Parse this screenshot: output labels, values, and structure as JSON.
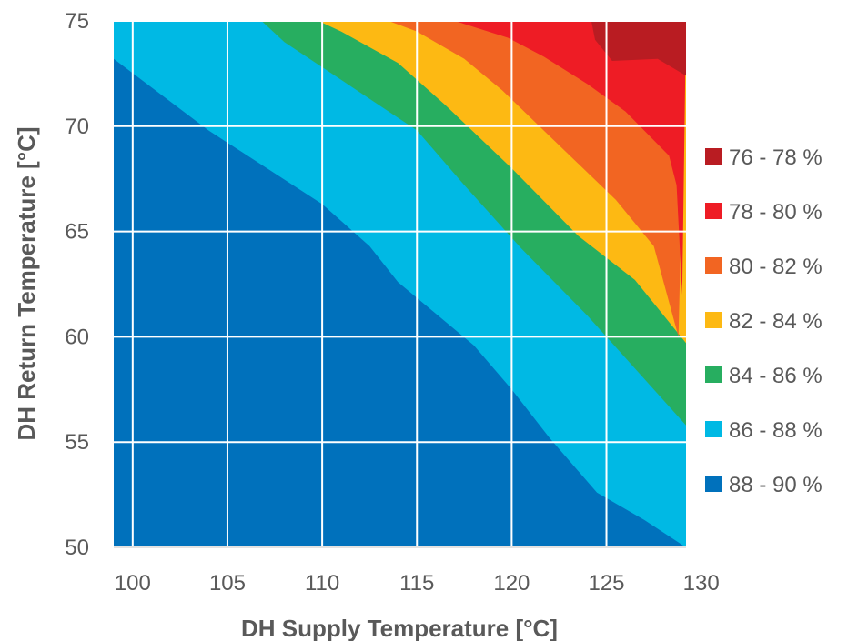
{
  "chart_data": {
    "type": "contour",
    "xlabel": "DH Supply Temperature [°C]",
    "ylabel": "DH Return Temperature [°C]",
    "xlim": [
      99,
      129.2
    ],
    "ylim": [
      50,
      75
    ],
    "xticks": [
      100,
      105,
      110,
      115,
      120,
      125,
      130
    ],
    "yticks": [
      50,
      55,
      60,
      65,
      70,
      75
    ],
    "grid": true,
    "legend_position": "right",
    "legend": [
      {
        "label": "76 - 78 %",
        "color": "#b91c22"
      },
      {
        "label": "78 - 80 %",
        "color": "#ee1c25"
      },
      {
        "label": "80 - 82 %",
        "color": "#f26522"
      },
      {
        "label": "82 - 84 %",
        "color": "#fdb913"
      },
      {
        "label": "84 - 86 %",
        "color": "#27ae60"
      },
      {
        "label": "86 - 88 %",
        "color": "#00b9e4"
      },
      {
        "label": "88 - 90 %",
        "color": "#0071bc"
      }
    ],
    "regions": [
      {
        "band": "86 - 88 %",
        "color": "#00b9e4",
        "boundary": [
          [
            99,
            75
          ],
          [
            129.2,
            75
          ],
          [
            129.2,
            50
          ],
          [
            99,
            50
          ]
        ]
      },
      {
        "band": "88 - 90 %",
        "color": "#0071bc",
        "boundary": [
          [
            99,
            73.2
          ],
          [
            104,
            69.8
          ],
          [
            110,
            66.3
          ],
          [
            112.5,
            64.3
          ],
          [
            114,
            62.6
          ],
          [
            118,
            59.6
          ],
          [
            120,
            57.5
          ],
          [
            122,
            55.2
          ],
          [
            124.5,
            52.6
          ],
          [
            127,
            51.3
          ],
          [
            129.2,
            50
          ],
          [
            99,
            50
          ]
        ]
      },
      {
        "band": "84 - 86 %",
        "color": "#27ae60",
        "boundary": [
          [
            106.8,
            75
          ],
          [
            129.2,
            75
          ],
          [
            129.2,
            55.8
          ],
          [
            124,
            61
          ],
          [
            120.5,
            64.2
          ],
          [
            117.5,
            67.2
          ],
          [
            115,
            69.8
          ],
          [
            111,
            72.2
          ],
          [
            108,
            74
          ]
        ]
      },
      {
        "band": "82 - 84 %",
        "color": "#fdb913",
        "boundary": [
          [
            109.8,
            75
          ],
          [
            129.2,
            75
          ],
          [
            129.2,
            59.7
          ],
          [
            126.5,
            62.7
          ],
          [
            123.5,
            64.8
          ],
          [
            120,
            68
          ],
          [
            116.5,
            71
          ],
          [
            114,
            73
          ],
          [
            111,
            74.5
          ]
        ]
      },
      {
        "band": "80 - 82 %",
        "color": "#f26522",
        "boundary": [
          [
            113.5,
            75
          ],
          [
            129.2,
            75
          ],
          [
            128.8,
            60
          ],
          [
            127.5,
            64.3
          ],
          [
            125.5,
            66.5
          ],
          [
            121.8,
            69.7
          ],
          [
            119.5,
            71.7
          ],
          [
            117.5,
            73.2
          ],
          [
            115,
            74.5
          ]
        ]
      },
      {
        "band": "78 - 80 %",
        "color": "#ee1c25",
        "boundary": [
          [
            117,
            75
          ],
          [
            129.2,
            75
          ],
          [
            129,
            62
          ],
          [
            128.7,
            67.2
          ],
          [
            128.3,
            68.6
          ],
          [
            126,
            70.7
          ],
          [
            124,
            72
          ],
          [
            121.7,
            73.3
          ],
          [
            119.8,
            74.2
          ]
        ]
      },
      {
        "band": "76 - 78 %",
        "color": "#b91c22",
        "boundary": [
          [
            124.2,
            75
          ],
          [
            129.2,
            75
          ],
          [
            129.2,
            72.4
          ],
          [
            127.7,
            73.2
          ],
          [
            125.3,
            73.1
          ],
          [
            124.4,
            74.1
          ]
        ]
      }
    ]
  }
}
